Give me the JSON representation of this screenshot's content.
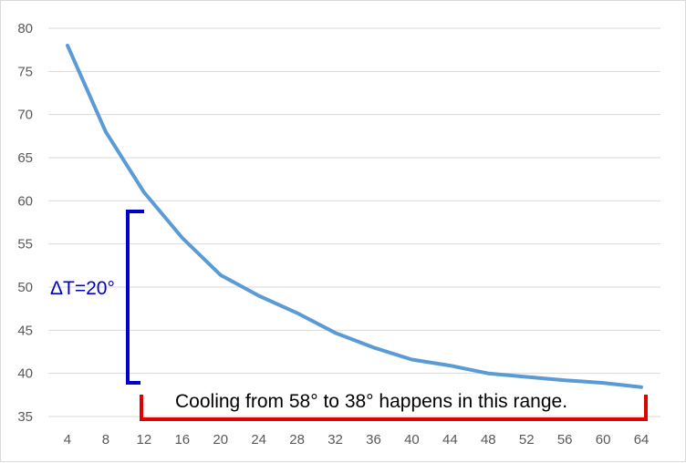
{
  "chart_data": {
    "type": "line",
    "x": [
      4,
      8,
      12,
      16,
      20,
      24,
      28,
      32,
      36,
      40,
      44,
      48,
      52,
      56,
      60,
      64
    ],
    "series": [
      {
        "values": [
          78,
          68,
          61,
          55.7,
          51.4,
          49,
          47,
          44.7,
          43,
          41.6,
          40.9,
          40,
          39.6,
          39.2,
          38.9,
          38.4
        ]
      }
    ],
    "ylim": [
      35,
      80
    ],
    "yticks": [
      35,
      40,
      45,
      50,
      55,
      60,
      65,
      70,
      75,
      80
    ],
    "grid": true,
    "colors": {
      "line": "#5b9bd5",
      "grid": "#d9d9d9",
      "delta_bracket": "#0000cc",
      "range_bracket": "#e00000"
    },
    "annotations": {
      "delta_label": "ΔT=20°",
      "range_label": "Cooling from 58° to 38° happens in this range."
    }
  }
}
